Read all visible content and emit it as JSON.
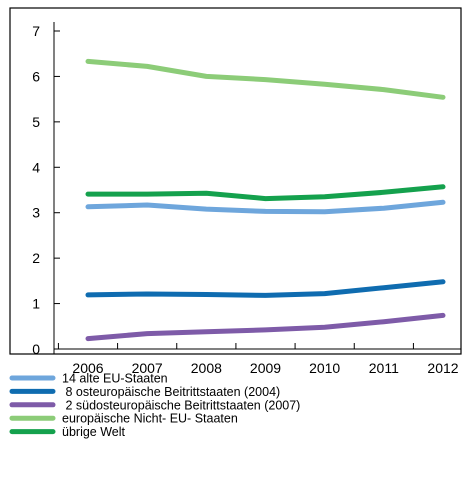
{
  "chart_data": {
    "type": "line",
    "title": "",
    "xlabel": "",
    "ylabel": "",
    "x": [
      "2006",
      "2007",
      "2008",
      "2009",
      "2010",
      "2011",
      "2012"
    ],
    "ylim": [
      0,
      7
    ],
    "yticks": [
      "0",
      "1",
      "2",
      "3",
      "4",
      "5",
      "6",
      "7"
    ],
    "grid": false,
    "legend_position": "bottom-left",
    "series": [
      {
        "name": "14 alte EU-Staaten",
        "color": "#6ea6dc",
        "values": [
          3.13,
          3.17,
          3.08,
          3.03,
          3.02,
          3.1,
          3.23
        ]
      },
      {
        "name": " 8 osteuropäische Beitrittstaaten (2004)",
        "color": "#0f6cb0",
        "values": [
          1.19,
          1.21,
          1.2,
          1.18,
          1.22,
          1.35,
          1.48
        ]
      },
      {
        "name": " 2 südosteuropäische Beitrittstaaten (2007)",
        "color": "#7e5ba8",
        "values": [
          0.23,
          0.34,
          0.38,
          0.42,
          0.48,
          0.6,
          0.74
        ]
      },
      {
        "name": "europäische Nicht- EU- Staaten",
        "color": "#8ccc78",
        "values": [
          6.33,
          6.22,
          6.0,
          5.93,
          5.83,
          5.71,
          5.54
        ]
      },
      {
        "name": "übrige Welt",
        "color": "#14a14d",
        "values": [
          3.41,
          3.41,
          3.43,
          3.31,
          3.35,
          3.45,
          3.57
        ]
      }
    ]
  }
}
